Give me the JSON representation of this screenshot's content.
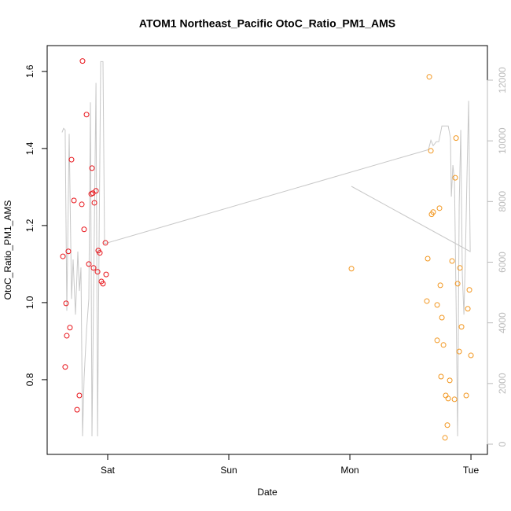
{
  "chart_data": {
    "type": "scatter",
    "title": "ATOM1 Northeast_Pacific OtoC_Ratio_PM1_AMS",
    "xlabel": "Date",
    "ylabel": "OtoC_Ratio_PM1_AMS",
    "xlim": [
      0.5,
      4.136
    ],
    "xticks": [
      {
        "value": 1,
        "label": "Sat"
      },
      {
        "value": 2,
        "label": "Sun"
      },
      {
        "value": 3,
        "label": "Mon"
      },
      {
        "value": 4,
        "label": "Tue"
      }
    ],
    "ylim": [
      0.606,
      1.667
    ],
    "yticks": [
      0.8,
      {
        "value": 1,
        "label": "1.0"
      },
      1.2,
      1.4,
      1.6
    ],
    "y2lim": [
      -337,
      13140
    ],
    "y2ticks": [
      0,
      2000,
      4000,
      6000,
      8000,
      10000,
      12000
    ],
    "series": [
      {
        "type": "scatter",
        "color": "#e8141a",
        "x": [
          0.63,
          0.662,
          0.649,
          0.656,
          0.675,
          0.688,
          0.701,
          0.721,
          0.747,
          0.766,
          0.786,
          0.792,
          0.805,
          0.825,
          0.844,
          0.864,
          0.87,
          0.877,
          0.883,
          0.89,
          0.903,
          0.916,
          0.922,
          0.935,
          0.948,
          0.961,
          0.981,
          0.987
        ],
        "values": [
          1.12,
          0.914,
          0.833,
          0.998,
          1.133,
          0.935,
          1.371,
          1.265,
          0.722,
          0.759,
          1.255,
          1.627,
          1.19,
          1.488,
          1.1,
          1.282,
          1.349,
          1.284,
          1.09,
          1.259,
          1.29,
          1.08,
          1.135,
          1.129,
          1.055,
          1.049,
          1.155,
          1.073
        ]
      },
      {
        "type": "scatter",
        "color": "#f2961e",
        "x": [
          3.013,
          3.636,
          3.643,
          3.656,
          3.669,
          3.675,
          3.688,
          3.721,
          3.721,
          3.74,
          3.753,
          3.747,
          3.76,
          3.773,
          3.786,
          3.792,
          3.805,
          3.812,
          3.825,
          3.844,
          3.864,
          3.877,
          3.87,
          3.89,
          3.903,
          3.909,
          3.922,
          3.961,
          3.974,
          3.987,
          4.0
        ],
        "values": [
          1.088,
          1.004,
          1.114,
          1.586,
          1.394,
          1.229,
          1.235,
          0.902,
          0.994,
          1.245,
          0.808,
          1.045,
          0.961,
          0.89,
          0.649,
          0.759,
          0.682,
          0.751,
          0.798,
          1.108,
          0.749,
          1.427,
          1.324,
          1.049,
          0.873,
          1.09,
          0.937,
          0.759,
          0.984,
          1.033,
          0.863
        ]
      },
      {
        "type": "line",
        "axis": "y2",
        "color": "#c8c8c8",
        "x": [
          0.623,
          0.636,
          0.649,
          0.662,
          0.682,
          0.701,
          0.714,
          0.734,
          0.753,
          0.766,
          0.779,
          0.792,
          0.805,
          0.825,
          0.844,
          0.857,
          0.87,
          0.883,
          0.903,
          0.916,
          0.929,
          0.942,
          0.961,
          0.974,
          3.649,
          3.669,
          3.688,
          3.714,
          3.734,
          3.76,
          3.812,
          3.831,
          3.838,
          3.851,
          3.864,
          3.877,
          3.89,
          3.903,
          3.916,
          3.929,
          3.942,
          3.955,
          3.968,
          3.981,
          3.994,
          3.013
        ],
        "values": [
          10280,
          10410,
          10360,
          4400,
          10230,
          4790,
          6090,
          4270,
          6350,
          5050,
          5830,
          260,
          2200,
          3760,
          4790,
          11270,
          260,
          4790,
          11910,
          260,
          6860,
          12610,
          12610,
          6610,
          9710,
          10020,
          9840,
          9970,
          9970,
          10490,
          10490,
          10100,
          8160,
          9200,
          8680,
          4790,
          260,
          7900,
          10360,
          5570,
          4270,
          6350,
          8940,
          11320,
          6350,
          8500
        ]
      }
    ]
  }
}
